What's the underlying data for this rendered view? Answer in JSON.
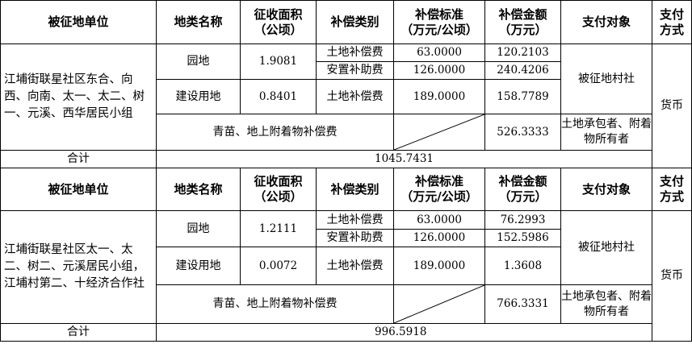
{
  "headers": [
    "被征地单位",
    "地类名称",
    "征收面积\n（公顷）",
    "补偿类别",
    "补偿标准\n（万元/公顷）",
    "补偿金额\n（万元）",
    "支付对象",
    "支付\n方式"
  ],
  "blocks": [
    {
      "unit": "江埔街联星社区东合、向西、向南、太一、太二、树一、元溪、西华居民小组",
      "land1": {
        "name": "园地",
        "area": "1.9081"
      },
      "land2": {
        "name": "建设用地",
        "area": "0.8401"
      },
      "items": [
        {
          "category": "土地补偿费",
          "standard": "63.0000",
          "amount": "120.2103"
        },
        {
          "category": "安置补助费",
          "standard": "126.0000",
          "amount": "240.4206"
        },
        {
          "category": "土地补偿费",
          "standard": "189.0000",
          "amount": "158.7789"
        }
      ],
      "payee1": "被征地村社",
      "crops_label": "青苗、地上附着物补偿费",
      "crops_amount": "526.3333",
      "payee2": "土地承包者、附着物所有者",
      "pay_method": "货币",
      "total_label": "合计",
      "total": "1045.7431"
    },
    {
      "unit": "江埔街联星社区太一、太二、树二、元溪居民小组，江埔村第二、十经济合作社",
      "land1": {
        "name": "园地",
        "area": "1.2111"
      },
      "land2": {
        "name": "建设用地",
        "area": "0.0072"
      },
      "items": [
        {
          "category": "土地补偿费",
          "standard": "63.0000",
          "amount": "76.2993"
        },
        {
          "category": "安置补助费",
          "standard": "126.0000",
          "amount": "152.5986"
        },
        {
          "category": "土地补偿费",
          "standard": "189.0000",
          "amount": "1.3608"
        }
      ],
      "payee1": "被征地村社",
      "crops_label": "青苗、地上附着物补偿费",
      "crops_amount": "766.3331",
      "payee2": "土地承包者、附着物所有者",
      "pay_method": "货币",
      "total_label": "合计",
      "total": "996.5918"
    }
  ]
}
